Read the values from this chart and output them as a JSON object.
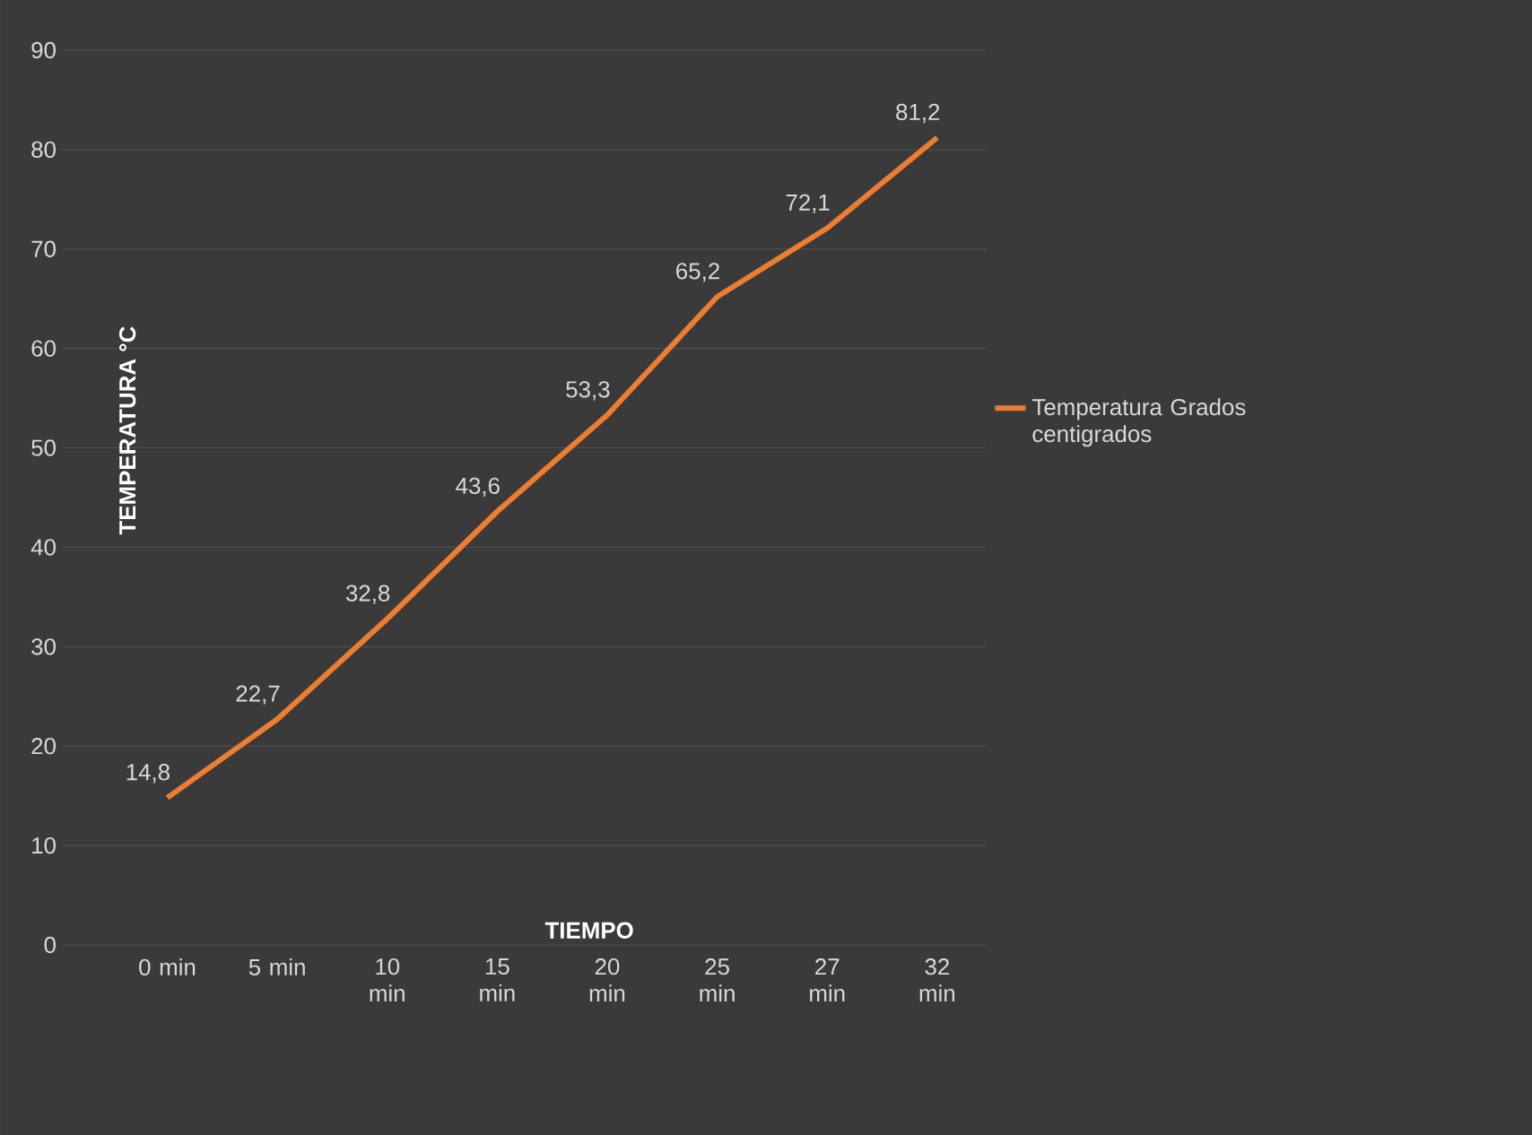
{
  "chart_data": {
    "type": "line",
    "xlabel": "TIEMPO",
    "ylabel": "TEMPERATURA °C",
    "categories": [
      "0 min",
      "5 min",
      "10 min",
      "15 min",
      "20 min",
      "25 min",
      "27 min",
      "32 min"
    ],
    "series": [
      {
        "name": "Temperatura  Grados centigrados",
        "color": "#ed7d31",
        "values": [
          14.8,
          22.7,
          32.8,
          43.6,
          53.3,
          65.2,
          72.1,
          81.2
        ],
        "value_labels": [
          "14,8",
          "22,7",
          "32,8",
          "43,6",
          "53,3",
          "65,2",
          "72,1",
          "81,2"
        ]
      }
    ],
    "ylim": [
      0,
      90
    ],
    "yticks": [
      0,
      10,
      20,
      30,
      40,
      50,
      60,
      70,
      80,
      90
    ],
    "grid": "y",
    "legend": "right",
    "line_style": "solid"
  }
}
